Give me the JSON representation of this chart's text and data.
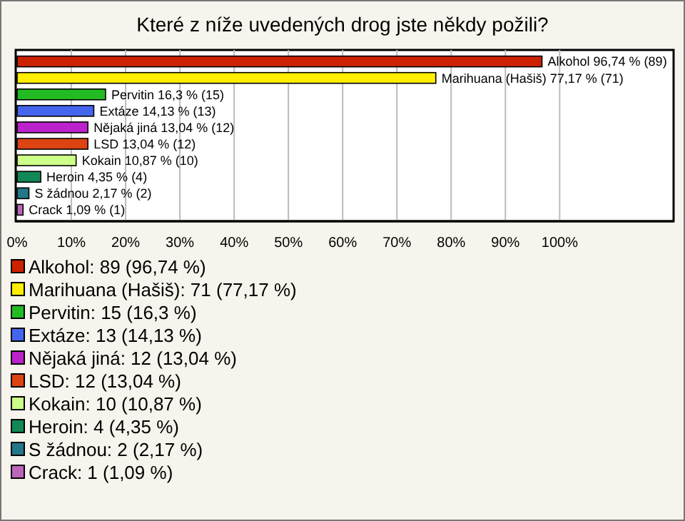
{
  "chart_data": {
    "type": "bar",
    "orientation": "horizontal",
    "title": "Které z níže uvedených drog jste někdy požili?",
    "categories": [
      null,
      null,
      null,
      null,
      null,
      null,
      null,
      null,
      null,
      null
    ],
    "values": [
      96.74,
      77.17,
      16.3,
      14.13,
      13.04,
      13.04,
      10.87,
      4.35,
      2.17,
      1.09
    ],
    "value_labels": [
      "Alkohol 96,74 % (89)",
      "Marihuana (Hašiš) 77,17 % (71)",
      "Pervitin 16,3 % (15)",
      "Extáze 14,13 % (13)",
      "Nějaká jiná 13,04 % (12)",
      "LSD 13,04 % (12)",
      "Kokain 10,87 % (10)",
      "Heroin 4,35 % (4)",
      "S žádnou 2,17 % (2)",
      "Crack 1,09 % (1)"
    ],
    "colors": [
      "#cc2200",
      "#ffee00",
      "#22bb22",
      "#4466ee",
      "#bb22cc",
      "#dd4411",
      "#ccff88",
      "#118855",
      "#227788",
      "#bb66bb"
    ],
    "annotations": [
      "Alkohol: 89 (96,74 %)",
      "Marihuana (Hašiš): 71 (77,17 %)",
      "Pervitin: 15 (16,3 %)",
      "Extáze: 13 (14,13 %)",
      "Nějaká jiná: 12 (13,04 %)",
      "LSD: 12 (13,04 %)",
      "Kokain: 10 (10,87 %)",
      "Heroin: 4 (4,35 %)",
      "S žádnou: 2 (2,17 %)",
      "Crack: 1 (1,09 %)"
    ],
    "xlim": [
      0,
      121
    ],
    "xticks": [
      {
        "value": 0,
        "label": "0%"
      },
      {
        "value": 10,
        "label": "10%"
      },
      {
        "value": 20,
        "label": "20%"
      },
      {
        "value": 30,
        "label": "30%"
      },
      {
        "value": 40,
        "label": "40%"
      },
      {
        "value": 50,
        "label": "50%"
      },
      {
        "value": 60,
        "label": "60%"
      },
      {
        "value": 70,
        "label": "70%"
      },
      {
        "value": 80,
        "label": "80%"
      },
      {
        "value": 90,
        "label": "90%"
      },
      {
        "value": 100,
        "label": "100%"
      }
    ],
    "grid": "x"
  }
}
